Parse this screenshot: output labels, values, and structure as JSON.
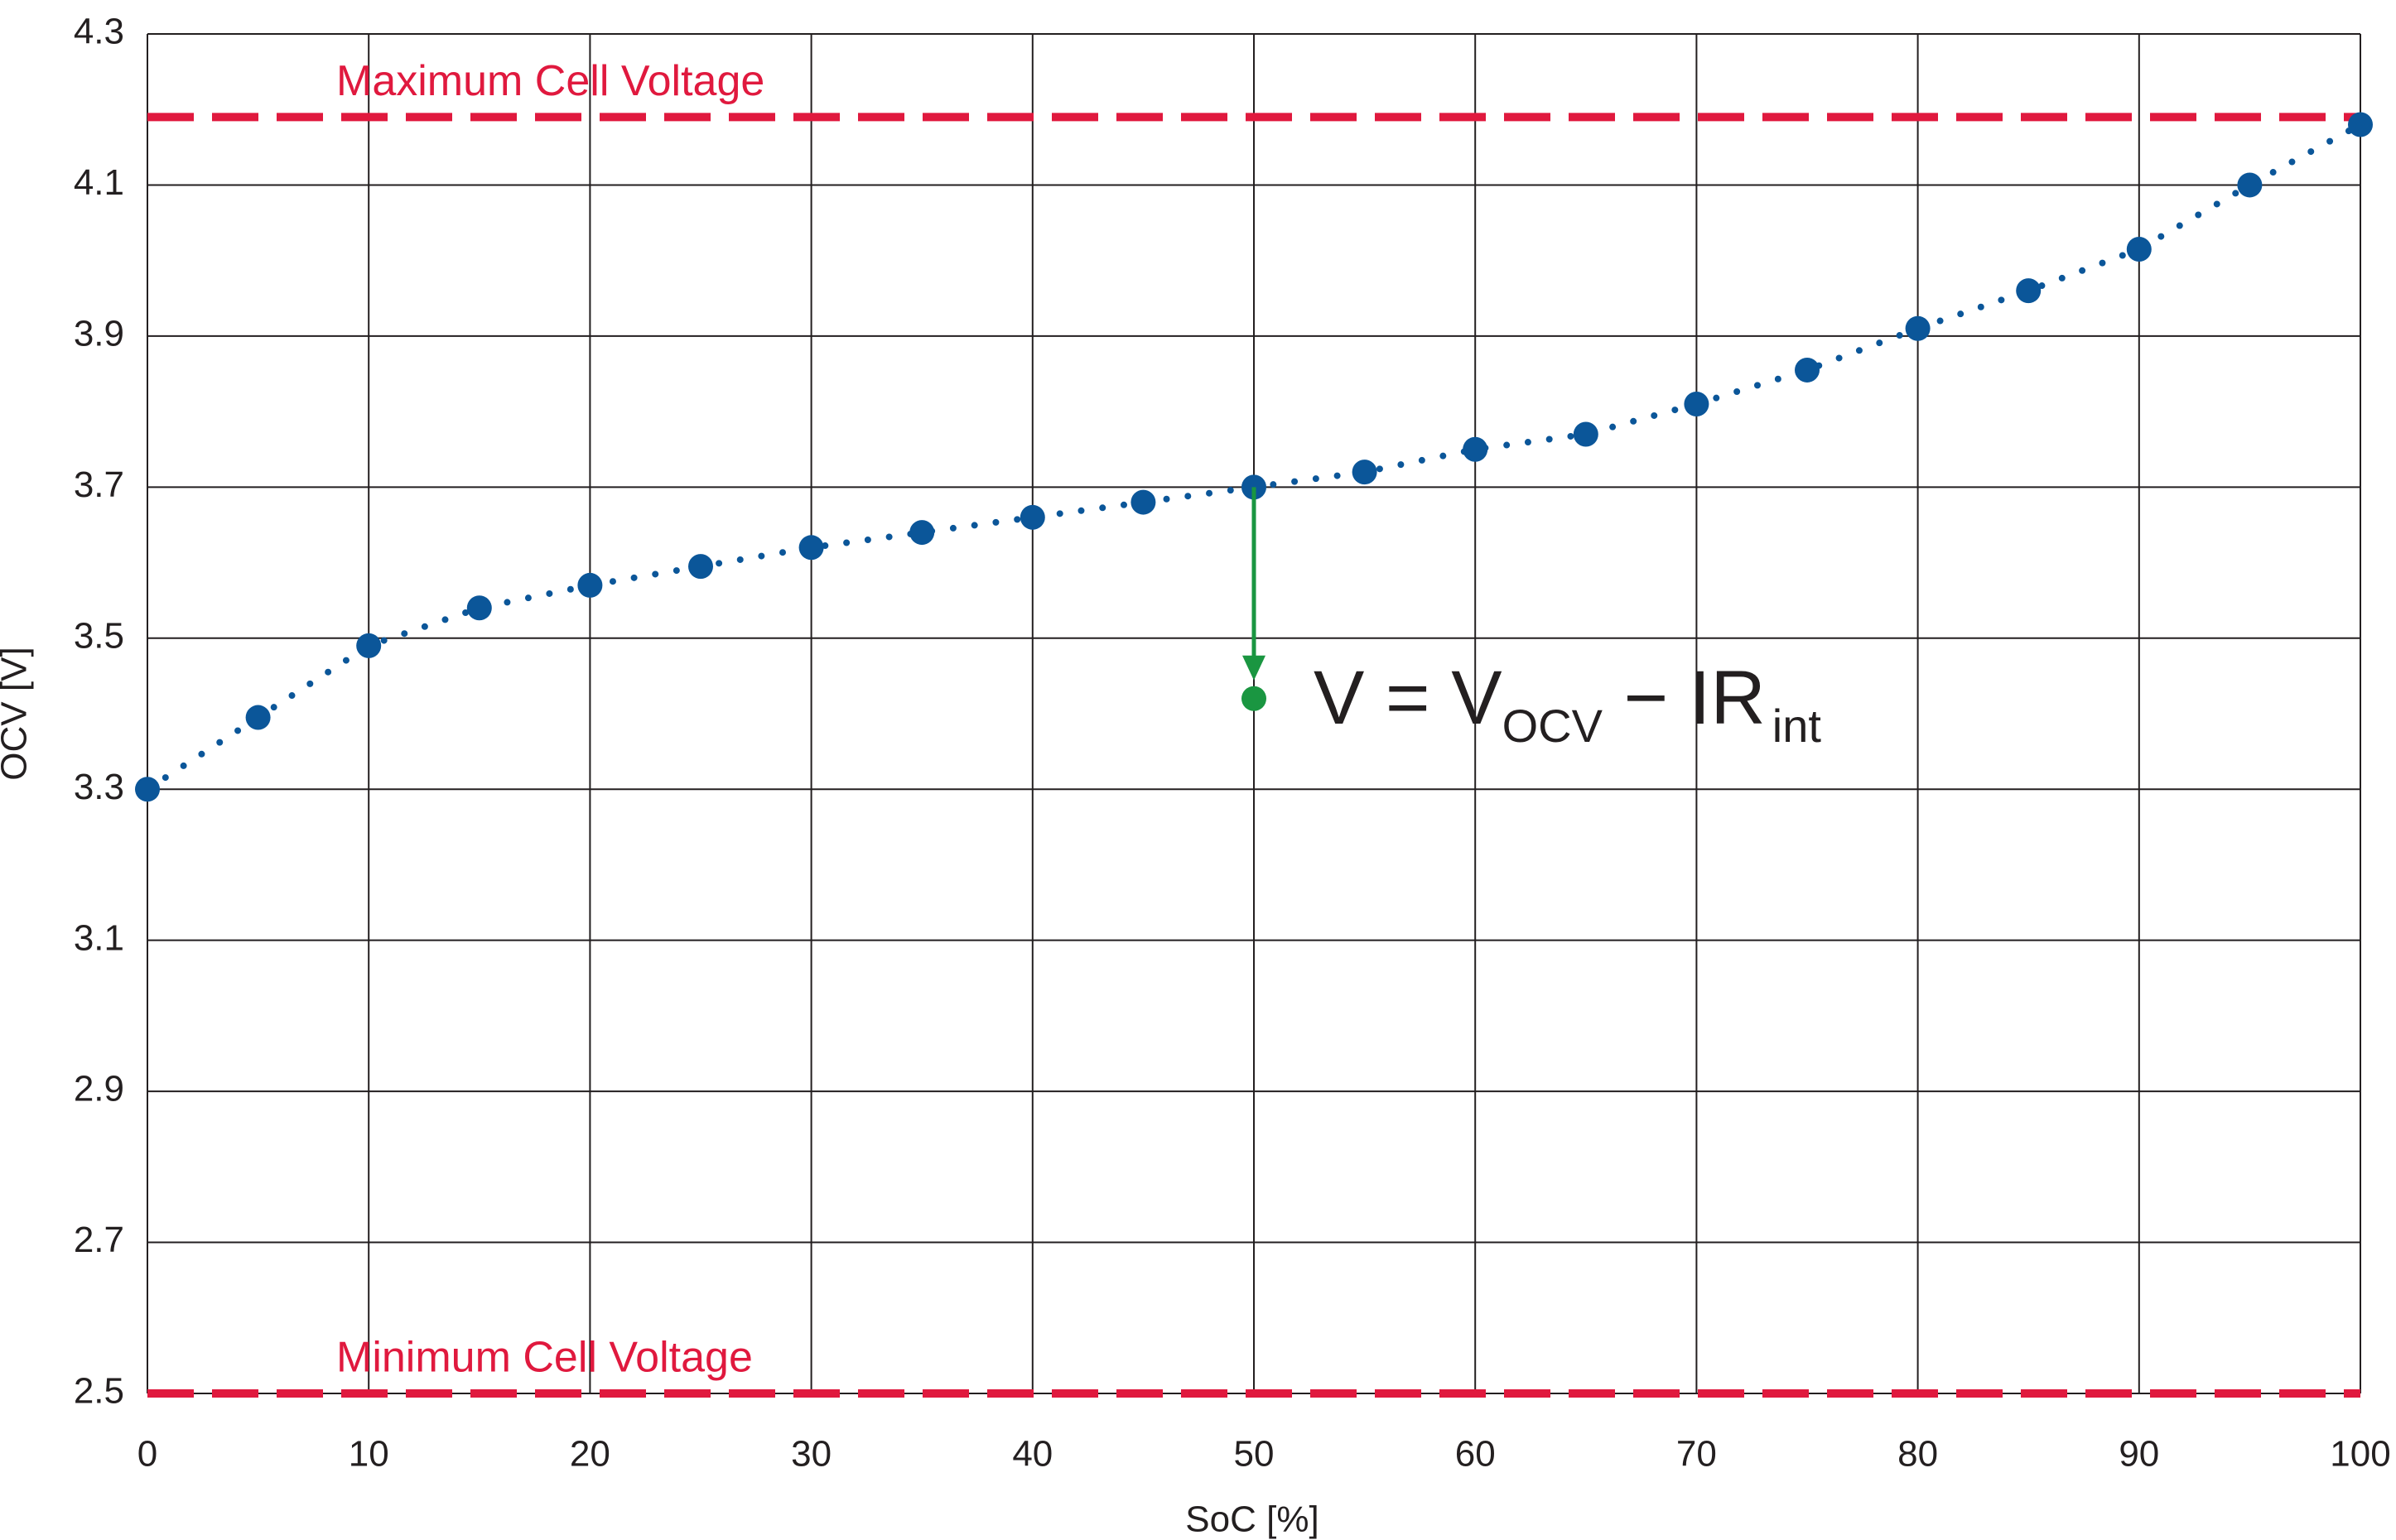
{
  "chart_data": {
    "type": "scatter",
    "x_label": "SoC [%]",
    "y_label": "OCV [V]",
    "xlim": [
      0,
      100
    ],
    "ylim": [
      2.5,
      4.3
    ],
    "xticks": [
      0,
      10,
      20,
      30,
      40,
      50,
      60,
      70,
      80,
      90,
      100
    ],
    "yticks": [
      2.5,
      2.7,
      2.9,
      3.1,
      3.3,
      3.5,
      3.7,
      3.9,
      4.1,
      4.3
    ],
    "grid": true,
    "trendline": "dotted",
    "series": [
      {
        "color": "#0b5699",
        "x": [
          0,
          5,
          10,
          15,
          20,
          25,
          30,
          35,
          40,
          45,
          50,
          55,
          60,
          65,
          70,
          75,
          80,
          85,
          90,
          95,
          100
        ],
        "values": [
          3.3,
          3.395,
          3.49,
          3.54,
          3.57,
          3.595,
          3.62,
          3.64,
          3.66,
          3.68,
          3.7,
          3.72,
          3.75,
          3.77,
          3.81,
          3.855,
          3.91,
          3.96,
          4.015,
          4.1,
          4.18
        ]
      }
    ],
    "reference_lines": [
      {
        "label": "Maximum Cell Voltage",
        "value": 4.19,
        "color": "#e0193e"
      },
      {
        "label": "Minimum Cell Voltage",
        "value": 2.5,
        "color": "#e0193e"
      }
    ],
    "drop_point": {
      "x": 50,
      "y": 3.42,
      "color": "#1a9641"
    },
    "equation": {
      "main": "V = V",
      "sub1": "OCV",
      "mid": " − IR",
      "sub2": "int"
    }
  }
}
